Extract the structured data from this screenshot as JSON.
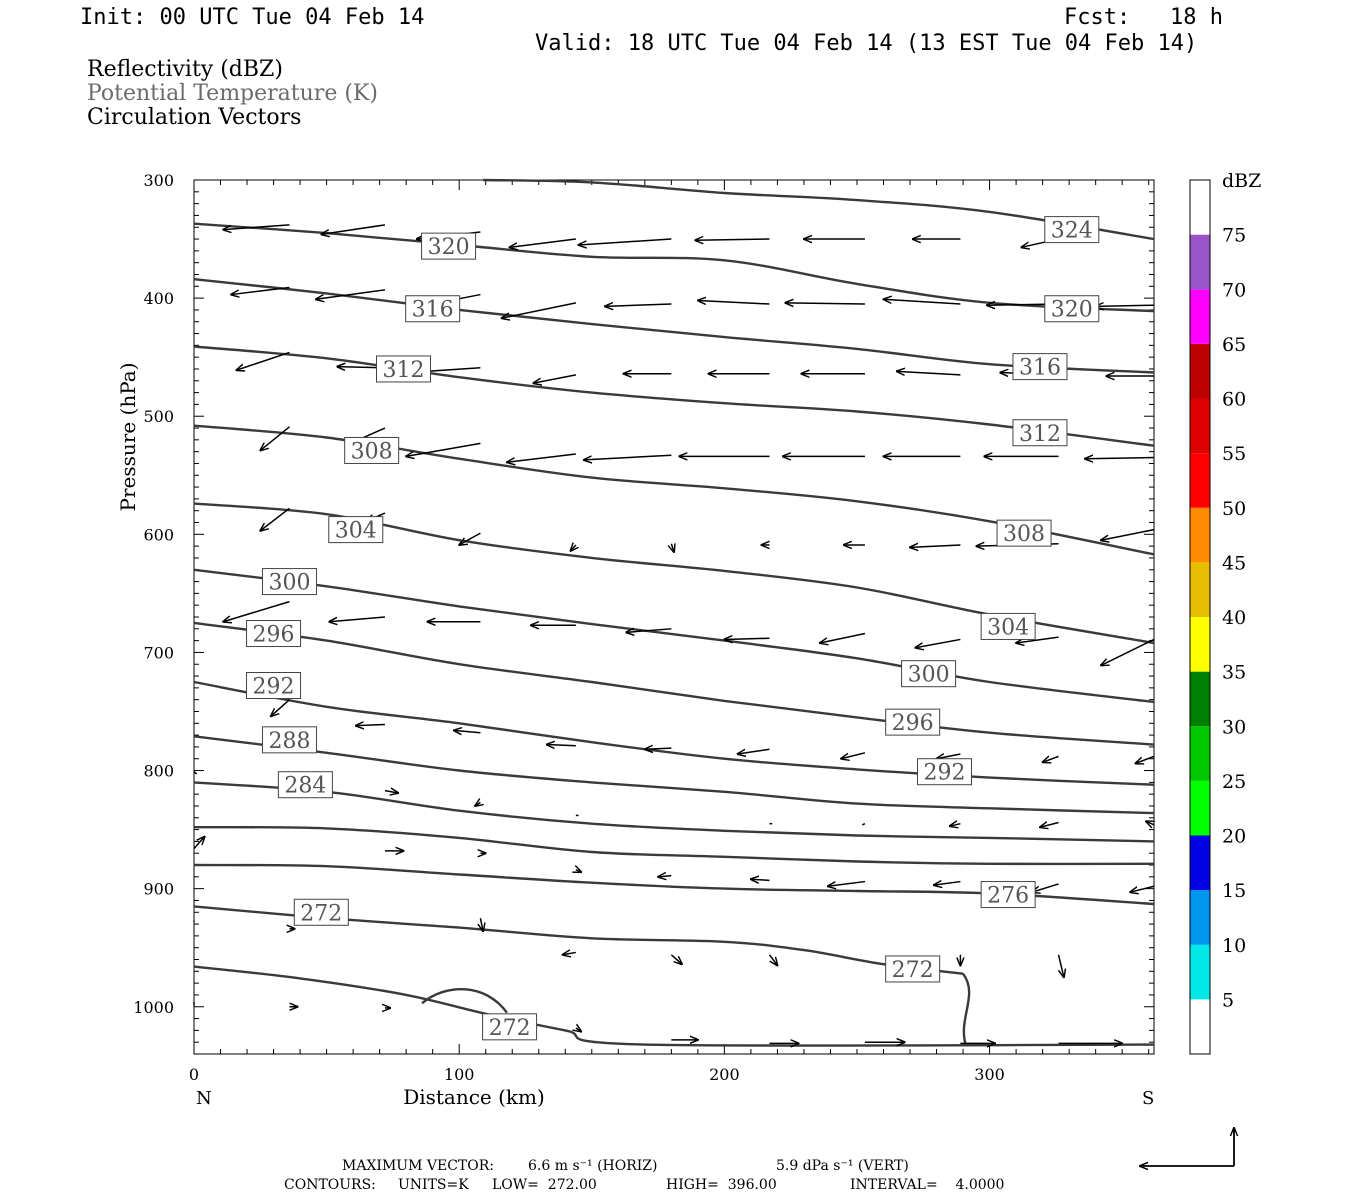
{
  "header": {
    "init": "Init: 00 UTC Tue 04 Feb 14",
    "fcst": "Fcst:   18 h",
    "valid": "Valid: 18 UTC Tue 04 Feb 14 (13 EST Tue 04 Feb 14)"
  },
  "legend": {
    "line1": "Reflectivity (dBZ)",
    "line2": "Potential Temperature (K)",
    "line3": "Circulation Vectors",
    "line2_color": "#6b6b6b"
  },
  "footer": {
    "max_vector_label": "MAXIMUM VECTOR:",
    "horiz": "6.6 m s⁻¹ (HORIZ)",
    "vert": "5.9 dPa s⁻¹ (VERT)",
    "contours_label": "CONTOURS:",
    "units": "UNITS=K",
    "low": "LOW=  272.00",
    "high": "HIGH=  396.00",
    "interval": "INTERVAL=    4.0000"
  },
  "chart_data": {
    "type": "cross-section",
    "xlabel": "Distance (km)",
    "ylabel": "Pressure (hPa)",
    "xlim": [
      0,
      362
    ],
    "ylim": [
      300,
      1040
    ],
    "x_ticks": [
      0,
      100,
      200,
      300
    ],
    "y_ticks": [
      300,
      400,
      500,
      600,
      700,
      800,
      900,
      1000
    ],
    "left_end_label": "N",
    "right_end_label": "S",
    "colorbar": {
      "title": "dBZ",
      "levels": [
        5,
        10,
        15,
        20,
        25,
        30,
        35,
        40,
        45,
        50,
        55,
        60,
        65,
        70,
        75
      ],
      "colors": [
        "#ffffff",
        "#00e8e8",
        "#0096f0",
        "#0000e6",
        "#00ff00",
        "#00c800",
        "#008000",
        "#ffff00",
        "#e6be00",
        "#ff8c00",
        "#ff0000",
        "#dc0000",
        "#be0000",
        "#ff00ff",
        "#9a55c8",
        "#ffffff"
      ]
    },
    "isentropes": [
      {
        "theta": "324",
        "pts": [
          [
            109,
            300
          ],
          [
            150,
            302
          ],
          [
            200,
            311
          ],
          [
            250,
            317
          ],
          [
            300,
            327
          ],
          [
            362,
            350
          ]
        ]
      },
      {
        "theta": "320",
        "pts": [
          [
            0,
            337
          ],
          [
            50,
            345
          ],
          [
            100,
            355
          ],
          [
            150,
            365
          ],
          [
            200,
            368
          ],
          [
            250,
            388
          ],
          [
            300,
            404
          ],
          [
            362,
            411
          ]
        ]
      },
      {
        "theta": "316",
        "pts": [
          [
            0,
            384
          ],
          [
            50,
            396
          ],
          [
            100,
            410
          ],
          [
            150,
            422
          ],
          [
            200,
            433
          ],
          [
            250,
            443
          ],
          [
            300,
            456
          ],
          [
            362,
            463
          ]
        ]
      },
      {
        "theta": "312",
        "pts": [
          [
            0,
            441
          ],
          [
            50,
            451
          ],
          [
            100,
            467
          ],
          [
            150,
            480
          ],
          [
            200,
            489
          ],
          [
            250,
            496
          ],
          [
            300,
            507
          ],
          [
            362,
            525
          ]
        ]
      },
      {
        "theta": "308",
        "pts": [
          [
            0,
            508
          ],
          [
            50,
            518
          ],
          [
            100,
            536
          ],
          [
            150,
            552
          ],
          [
            200,
            561
          ],
          [
            250,
            572
          ],
          [
            300,
            589
          ],
          [
            362,
            617
          ]
        ]
      },
      {
        "theta": "304",
        "pts": [
          [
            0,
            574
          ],
          [
            50,
            583
          ],
          [
            100,
            605
          ],
          [
            150,
            620
          ],
          [
            200,
            631
          ],
          [
            250,
            645
          ],
          [
            300,
            668
          ],
          [
            362,
            692
          ]
        ]
      },
      {
        "theta": "300",
        "pts": [
          [
            0,
            630
          ],
          [
            50,
            644
          ],
          [
            100,
            661
          ],
          [
            150,
            676
          ],
          [
            200,
            690
          ],
          [
            250,
            705
          ],
          [
            300,
            725
          ],
          [
            362,
            742
          ]
        ]
      },
      {
        "theta": "296",
        "pts": [
          [
            0,
            675
          ],
          [
            50,
            690
          ],
          [
            100,
            710
          ],
          [
            150,
            725
          ],
          [
            200,
            741
          ],
          [
            250,
            755
          ],
          [
            300,
            768
          ],
          [
            362,
            778
          ]
        ]
      },
      {
        "theta": "292",
        "pts": [
          [
            0,
            725
          ],
          [
            50,
            746
          ],
          [
            100,
            760
          ],
          [
            150,
            776
          ],
          [
            200,
            790
          ],
          [
            250,
            799
          ],
          [
            300,
            806
          ],
          [
            362,
            812
          ]
        ]
      },
      {
        "theta": "288",
        "pts": [
          [
            0,
            771
          ],
          [
            50,
            785
          ],
          [
            100,
            800
          ],
          [
            150,
            810
          ],
          [
            200,
            818
          ],
          [
            250,
            828
          ],
          [
            300,
            832
          ],
          [
            362,
            836
          ]
        ]
      },
      {
        "theta": "284",
        "pts": [
          [
            0,
            810
          ],
          [
            50,
            818
          ],
          [
            100,
            834
          ],
          [
            150,
            845
          ],
          [
            200,
            851
          ],
          [
            250,
            855
          ],
          [
            300,
            857
          ],
          [
            362,
            860
          ]
        ]
      },
      {
        "theta": "280",
        "pts": [
          [
            0,
            848
          ],
          [
            50,
            849
          ],
          [
            100,
            857
          ],
          [
            150,
            869
          ],
          [
            200,
            873
          ],
          [
            250,
            877
          ],
          [
            300,
            879
          ],
          [
            362,
            879
          ]
        ]
      },
      {
        "theta": "276",
        "pts": [
          [
            0,
            880
          ],
          [
            50,
            881
          ],
          [
            100,
            888
          ],
          [
            150,
            895
          ],
          [
            200,
            900
          ],
          [
            250,
            902
          ],
          [
            300,
            904
          ],
          [
            362,
            913
          ]
        ]
      },
      {
        "theta": "272",
        "pts": [
          [
            0,
            915
          ],
          [
            50,
            925
          ],
          [
            100,
            933
          ],
          [
            150,
            942
          ],
          [
            200,
            945
          ],
          [
            230,
            952
          ],
          [
            260,
            964
          ],
          [
            290,
            972
          ]
        ]
      },
      {
        "theta": "272",
        "pts": [
          [
            0,
            966
          ],
          [
            40,
            976
          ],
          [
            80,
            990
          ],
          [
            110,
            1006
          ],
          [
            140,
            1020
          ],
          [
            170,
            1032
          ],
          [
            362,
            1032
          ]
        ]
      }
    ],
    "contour_labels": [
      {
        "text": "324",
        "x": 331,
        "y": 342
      },
      {
        "text": "320",
        "x": 96,
        "y": 356
      },
      {
        "text": "320",
        "x": 331,
        "y": 409
      },
      {
        "text": "316",
        "x": 90,
        "y": 409
      },
      {
        "text": "316",
        "x": 319,
        "y": 458
      },
      {
        "text": "312",
        "x": 79,
        "y": 460
      },
      {
        "text": "312",
        "x": 319,
        "y": 514
      },
      {
        "text": "308",
        "x": 67,
        "y": 529
      },
      {
        "text": "308",
        "x": 313,
        "y": 599
      },
      {
        "text": "304",
        "x": 61,
        "y": 596
      },
      {
        "text": "304",
        "x": 307,
        "y": 678
      },
      {
        "text": "300",
        "x": 36,
        "y": 640
      },
      {
        "text": "300",
        "x": 277,
        "y": 718
      },
      {
        "text": "296",
        "x": 30,
        "y": 684
      },
      {
        "text": "296",
        "x": 271,
        "y": 759
      },
      {
        "text": "292",
        "x": 30,
        "y": 728
      },
      {
        "text": "292",
        "x": 283,
        "y": 801
      },
      {
        "text": "288",
        "x": 36,
        "y": 774
      },
      {
        "text": "284",
        "x": 42,
        "y": 812
      },
      {
        "text": "276",
        "x": 307,
        "y": 905
      },
      {
        "text": "272",
        "x": 48,
        "y": 920
      },
      {
        "text": "272",
        "x": 271,
        "y": 968
      },
      {
        "text": "272",
        "x": 119,
        "y": 1017
      }
    ],
    "vectors": [
      [
        36,
        338,
        11,
        342
      ],
      [
        72,
        338,
        48,
        346
      ],
      [
        108,
        344,
        84,
        350
      ],
      [
        144,
        350,
        119,
        357
      ],
      [
        180,
        350,
        145,
        355
      ],
      [
        217,
        350,
        189,
        351
      ],
      [
        253,
        350,
        230,
        350
      ],
      [
        289,
        350,
        271,
        350
      ],
      [
        326,
        350,
        312,
        357
      ],
      [
        36,
        391,
        14,
        397
      ],
      [
        72,
        393,
        46,
        401
      ],
      [
        108,
        397,
        83,
        408
      ],
      [
        144,
        404,
        116,
        417
      ],
      [
        180,
        405,
        155,
        407
      ],
      [
        217,
        405,
        190,
        402
      ],
      [
        253,
        405,
        223,
        404
      ],
      [
        289,
        405,
        260,
        401
      ],
      [
        326,
        405,
        299,
        406
      ],
      [
        362,
        406,
        340,
        407
      ],
      [
        36,
        446,
        16,
        461
      ],
      [
        72,
        459,
        54,
        458
      ],
      [
        108,
        459,
        81,
        463
      ],
      [
        144,
        465,
        128,
        472
      ],
      [
        180,
        464,
        162,
        464
      ],
      [
        217,
        464,
        194,
        464
      ],
      [
        253,
        464,
        229,
        464
      ],
      [
        289,
        465,
        265,
        462
      ],
      [
        326,
        465,
        304,
        463
      ],
      [
        362,
        466,
        344,
        466
      ],
      [
        36,
        509,
        25,
        529
      ],
      [
        72,
        510,
        58,
        524
      ],
      [
        108,
        523,
        80,
        534
      ],
      [
        144,
        532,
        118,
        539
      ],
      [
        180,
        533,
        147,
        537
      ],
      [
        217,
        534,
        183,
        534
      ],
      [
        253,
        534,
        222,
        534
      ],
      [
        289,
        534,
        260,
        534
      ],
      [
        326,
        534,
        298,
        534
      ],
      [
        362,
        535,
        336,
        536
      ],
      [
        36,
        578,
        25,
        597
      ],
      [
        72,
        582,
        65,
        589
      ],
      [
        108,
        599,
        100,
        609
      ],
      [
        144,
        609,
        142,
        614
      ],
      [
        180,
        608,
        181,
        615
      ],
      [
        217,
        609,
        214,
        609
      ],
      [
        253,
        609,
        245,
        609
      ],
      [
        289,
        609,
        270,
        611
      ],
      [
        326,
        608,
        295,
        610
      ],
      [
        362,
        596,
        342,
        605
      ],
      [
        36,
        657,
        11,
        674
      ],
      [
        72,
        670,
        51,
        674
      ],
      [
        108,
        674,
        88,
        674
      ],
      [
        144,
        677,
        127,
        677
      ],
      [
        180,
        680,
        163,
        683
      ],
      [
        217,
        688,
        200,
        689
      ],
      [
        253,
        684,
        236,
        692
      ],
      [
        289,
        689,
        272,
        696
      ],
      [
        326,
        687,
        310,
        692
      ],
      [
        362,
        689,
        342,
        711
      ],
      [
        36,
        740,
        29,
        754
      ],
      [
        72,
        761,
        61,
        762
      ],
      [
        108,
        768,
        98,
        766
      ],
      [
        144,
        779,
        133,
        778
      ],
      [
        180,
        781,
        170,
        782
      ],
      [
        217,
        782,
        205,
        786
      ],
      [
        253,
        785,
        244,
        790
      ],
      [
        289,
        786,
        280,
        790
      ],
      [
        326,
        788,
        320,
        793
      ],
      [
        362,
        788,
        355,
        794
      ],
      [
        0,
        801,
        1,
        803
      ],
      [
        36,
        812,
        43,
        816
      ],
      [
        72,
        817,
        77,
        819
      ],
      [
        108,
        827,
        106,
        830
      ],
      [
        144,
        838,
        145,
        838
      ],
      [
        180,
        845,
        180,
        845
      ],
      [
        217,
        845,
        218,
        845
      ],
      [
        253,
        845,
        252,
        846
      ],
      [
        289,
        845,
        285,
        847
      ],
      [
        326,
        844,
        319,
        848
      ],
      [
        362,
        846,
        359,
        843
      ],
      [
        0,
        866,
        4,
        856
      ],
      [
        72,
        868,
        79,
        868
      ],
      [
        108,
        870,
        110,
        870
      ],
      [
        144,
        884,
        146,
        886
      ],
      [
        180,
        889,
        175,
        890
      ],
      [
        217,
        893,
        210,
        892
      ],
      [
        253,
        894,
        239,
        898
      ],
      [
        289,
        894,
        279,
        897
      ],
      [
        326,
        896,
        316,
        903
      ],
      [
        362,
        898,
        353,
        903
      ],
      [
        0,
        927,
        0,
        928
      ],
      [
        36,
        934,
        38,
        934
      ],
      [
        108,
        925,
        109,
        936
      ],
      [
        144,
        954,
        139,
        956
      ],
      [
        180,
        956,
        184,
        964
      ],
      [
        217,
        956,
        220,
        965
      ],
      [
        289,
        956,
        289,
        965
      ],
      [
        326,
        956,
        328,
        975
      ],
      [
        0,
        996,
        0,
        999
      ],
      [
        36,
        1000,
        39,
        1000
      ],
      [
        72,
        1001,
        74,
        1001
      ],
      [
        144,
        1018,
        146,
        1021
      ],
      [
        180,
        1028,
        190,
        1028
      ],
      [
        217,
        1031,
        228,
        1031
      ],
      [
        253,
        1030,
        268,
        1030
      ],
      [
        289,
        1031,
        302,
        1031
      ],
      [
        326,
        1031,
        350,
        1031
      ]
    ],
    "reference_vector": "6.6 m s-1 (HORIZ) / 5.9 dPa s-1 (VERT)"
  }
}
